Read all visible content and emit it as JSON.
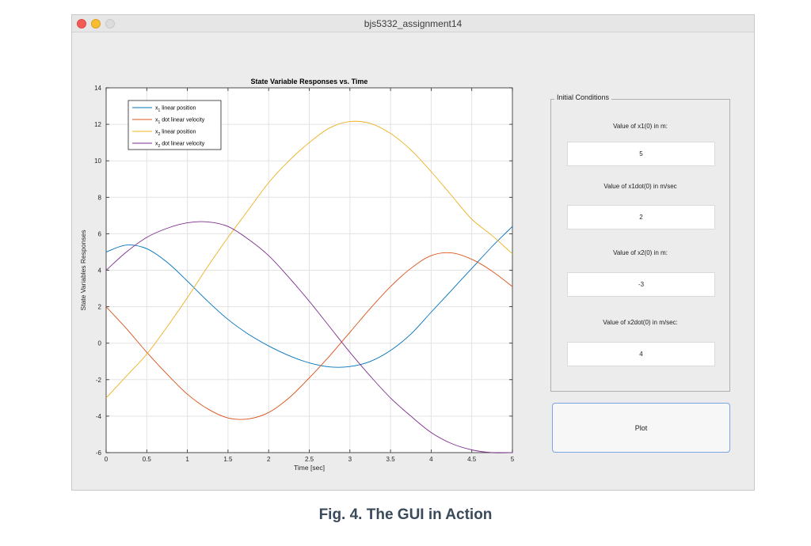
{
  "window": {
    "title": "bjs5332_assignment14"
  },
  "chart_data": {
    "type": "line",
    "title": "State Variable Responses vs. Time",
    "xlabel": "Time [sec]",
    "ylabel": "State Variables Responses",
    "xlim": [
      0,
      5
    ],
    "ylim": [
      -6,
      14
    ],
    "xticks": [
      0,
      0.5,
      1,
      1.5,
      2,
      2.5,
      3,
      3.5,
      4,
      4.5,
      5
    ],
    "yticks": [
      -6,
      -4,
      -2,
      0,
      2,
      4,
      6,
      8,
      10,
      12,
      14
    ],
    "xtick_labels": [
      "0",
      "0.5",
      "1",
      "1.5",
      "2",
      "2.5",
      "3",
      "3.5",
      "4",
      "4.5",
      "5"
    ],
    "ytick_labels": [
      "-6",
      "-4",
      "-2",
      "0",
      "2",
      "4",
      "6",
      "8",
      "10",
      "12",
      "14"
    ],
    "grid": true,
    "legend_position": "top-left",
    "x": [
      0,
      0.25,
      0.5,
      0.75,
      1,
      1.25,
      1.5,
      1.75,
      2,
      2.25,
      2.5,
      2.75,
      3,
      3.25,
      3.5,
      3.75,
      4,
      4.25,
      4.5,
      4.75,
      5
    ],
    "series": [
      {
        "name": "x1 linear position",
        "base": "x",
        "sub": "1",
        "rest": " linear position",
        "color": "#0072bd",
        "values": [
          5.0,
          5.38,
          5.18,
          4.44,
          3.4,
          2.3,
          1.3,
          0.5,
          -0.15,
          -0.68,
          -1.08,
          -1.3,
          -1.28,
          -1.0,
          -0.4,
          0.5,
          1.7,
          2.9,
          4.1,
          5.3,
          6.4
        ]
      },
      {
        "name": "x1 dot linear velocity",
        "base": "x",
        "sub": "1",
        "rest": " dot linear velocity",
        "color": "#d95319",
        "values": [
          2.0,
          0.8,
          -0.5,
          -1.7,
          -2.8,
          -3.6,
          -4.1,
          -4.15,
          -3.8,
          -3.0,
          -1.9,
          -0.7,
          0.6,
          1.9,
          3.1,
          4.1,
          4.8,
          4.95,
          4.6,
          3.95,
          3.1
        ]
      },
      {
        "name": "x2 linear position",
        "base": "x",
        "sub": "2",
        "rest": " linear position",
        "color": "#edb120",
        "values": [
          -3.0,
          -1.8,
          -0.6,
          0.9,
          2.5,
          4.2,
          5.8,
          7.3,
          8.8,
          10.0,
          11.0,
          11.8,
          12.15,
          12.05,
          11.5,
          10.6,
          9.4,
          8.1,
          6.8,
          5.9,
          4.9
        ]
      },
      {
        "name": "x2 dot linear velocity",
        "base": "x",
        "sub": "2",
        "rest": " dot linear velocity",
        "color": "#7e2f8e",
        "values": [
          4.0,
          5.0,
          5.8,
          6.3,
          6.6,
          6.65,
          6.4,
          5.7,
          4.8,
          3.6,
          2.3,
          0.9,
          -0.5,
          -1.8,
          -3.0,
          -4.0,
          -4.9,
          -5.5,
          -5.85,
          -6.0,
          -6.0
        ]
      }
    ]
  },
  "panel": {
    "title": "Initial Conditions",
    "x1_label": "Value of x1(0) in m:",
    "x1_value": "5",
    "x1dot_label": "Value of x1dot(0) in m/sec",
    "x1dot_value": "2",
    "x2_label": "Value of x2(0) in m:",
    "x2_value": "-3",
    "x2dot_label": "Value of x2dot(0) in m/sec:",
    "x2dot_value": "4"
  },
  "plot_button": {
    "label": "Plot"
  },
  "caption": "Fig. 4. The GUI in Action"
}
